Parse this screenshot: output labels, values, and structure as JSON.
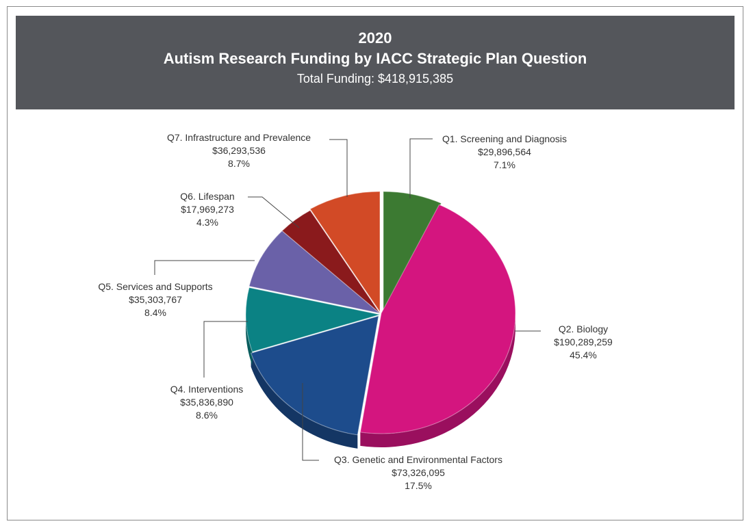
{
  "chart_data": {
    "type": "pie",
    "title": "Autism Research Funding by IACC Strategic Plan Question",
    "year": "2020",
    "subtitle": "Total Funding: $418,915,385",
    "slices": [
      {
        "label": "Q1. Screening and Diagnosis",
        "amount": "$29,896,564",
        "percent": "7.1%",
        "value": 7.1,
        "color": "#3c7a32",
        "side": "#2a5a24"
      },
      {
        "label": "Q2. Biology",
        "amount": "$190,289,259",
        "percent": "45.4%",
        "value": 45.4,
        "color": "#d4157f",
        "side": "#9a0f5e"
      },
      {
        "label": "Q3. Genetic and Environmental Factors",
        "amount": "$73,326,095",
        "percent": "17.5%",
        "value": 17.5,
        "color": "#1d4c8c",
        "side": "#143664"
      },
      {
        "label": "Q4. Interventions",
        "amount": "$35,836,890",
        "percent": "8.6%",
        "value": 8.6,
        "color": "#0b8284",
        "side": "#085c5d"
      },
      {
        "label": "Q5. Services and Supports",
        "amount": "$35,303,767",
        "percent": "8.4%",
        "value": 8.4,
        "color": "#6a61a8",
        "side": "#4a4478"
      },
      {
        "label": "Q6. Lifespan",
        "amount": "$17,969,273",
        "percent": "4.3%",
        "value": 4.3,
        "color": "#8a1a1c",
        "side": "#601214"
      },
      {
        "label": "Q7. Infrastructure and Prevalence",
        "amount": "$36,293,536",
        "percent": "8.7%",
        "value": 8.7,
        "color": "#d24a26",
        "side": "#98361c"
      }
    ]
  }
}
